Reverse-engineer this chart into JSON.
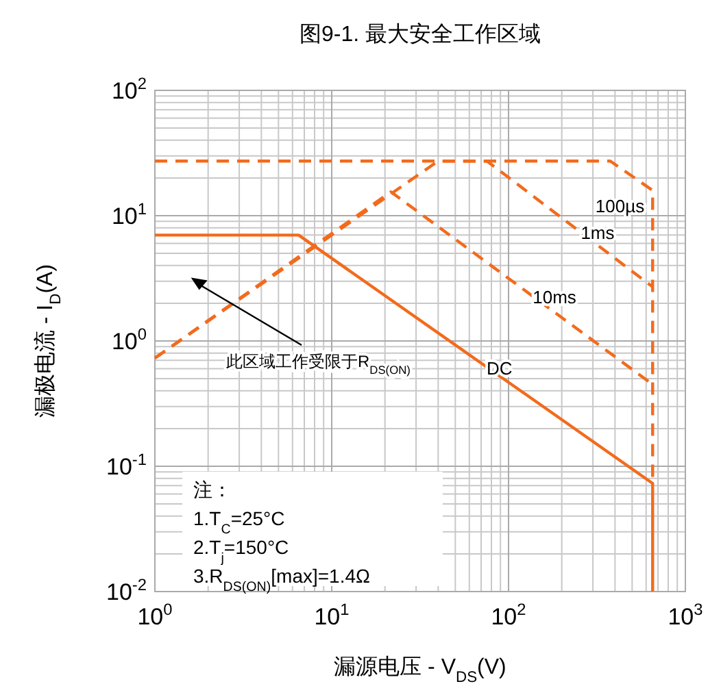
{
  "chart_data": {
    "type": "line",
    "title": "图9-1. 最大安全工作区域",
    "xlabel": "漏源电压 - V$_{DS}$(V)",
    "ylabel": "漏极电流 - I$_{D}$(A)",
    "log": "xy",
    "grid": true,
    "xlim": [
      1,
      1000
    ],
    "ylim": [
      0.01,
      100
    ],
    "xticks": [
      {
        "value": 1,
        "label": "10$^{0}$"
      },
      {
        "value": 10,
        "label": "10$^{1}$"
      },
      {
        "value": 100,
        "label": "10$^{2}$"
      },
      {
        "value": 1000,
        "label": "10$^{3}$"
      }
    ],
    "yticks": [
      {
        "value": 0.01,
        "label": "10$^{-2}$"
      },
      {
        "value": 0.1,
        "label": "10$^{-1}$"
      },
      {
        "value": 1,
        "label": "10$^{0}$"
      },
      {
        "value": 10,
        "label": "10$^{1}$"
      },
      {
        "value": 100,
        "label": "10$^{2}$"
      }
    ],
    "series": [
      {
        "name": "100µs",
        "color": "#f26b1d",
        "line_style": "dashed",
        "x": [
          1,
          376,
          653,
          653
        ],
        "values": [
          27.3,
          27.3,
          15.9,
          0.073
        ]
      },
      {
        "name": "1ms",
        "color": "#f26b1d",
        "line_style": "dashed",
        "x": [
          1,
          40,
          75.5,
          653
        ],
        "values": [
          0.73,
          27.3,
          27.3,
          2.7
        ]
      },
      {
        "name": "10ms",
        "color": "#f26b1d",
        "line_style": "dashed",
        "x": [
          1,
          21.6,
          653
        ],
        "values": [
          0.73,
          15.5,
          0.45
        ]
      },
      {
        "name": "DC",
        "color": "#f26b1d",
        "line_style": "solid",
        "x": [
          1,
          6.5,
          653,
          653
        ],
        "values": [
          7,
          7,
          0.073,
          0.01
        ]
      }
    ],
    "annotations": [
      "此区域工作受限于R$_{DS(ON)}$",
      "注：",
      "1.T$_{C}$=25°C",
      "2.T$_{j}$=150°C",
      "3.R$_{DS(ON)}$[max]=1.4Ω"
    ]
  }
}
